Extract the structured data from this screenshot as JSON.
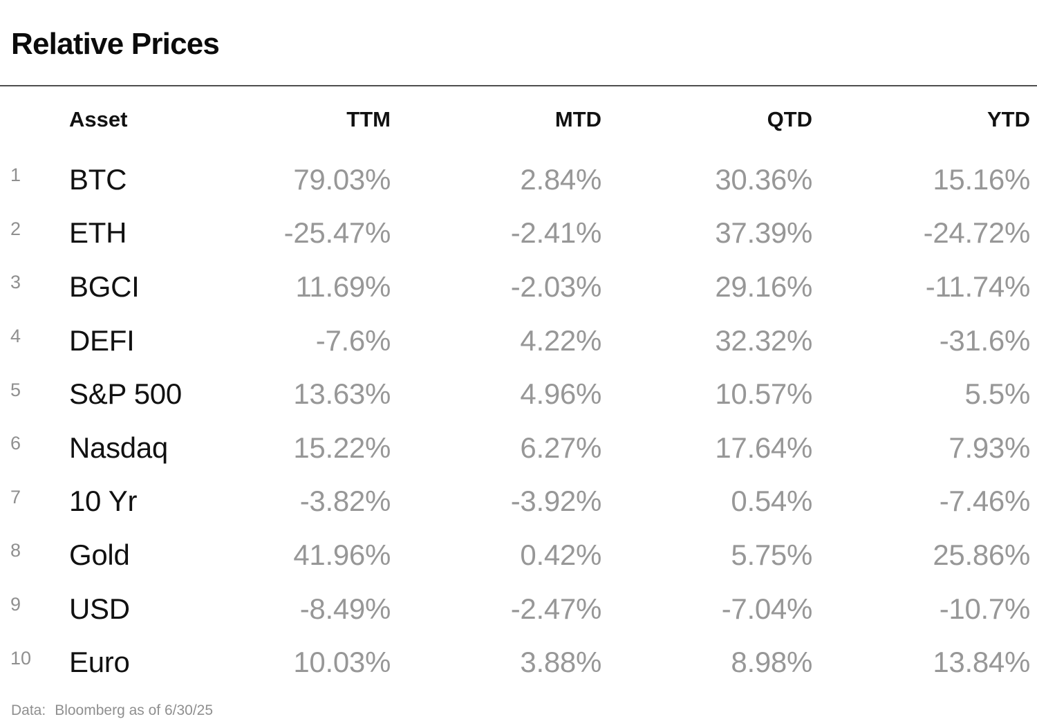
{
  "page": {
    "title": "Relative Prices",
    "footer": {
      "label": "Data:",
      "value": "Bloomberg as of 6/30/25"
    }
  },
  "colors": {
    "background": "#ffffff",
    "title_text": "#0b0b0b",
    "header_text": "#111111",
    "asset_text": "#111111",
    "value_text": "#979797",
    "row_number_text": "#8f8f8f",
    "rule": "#4d4d4d",
    "footer_text": "#8f8f8f"
  },
  "table": {
    "header": {
      "asset": "Asset",
      "ttm": "TTM",
      "mtd": "MTD",
      "qtd": "QTD",
      "ytd": "YTD"
    },
    "rows": [
      {
        "num": "1",
        "asset": "BTC",
        "ttm": "79.03%",
        "mtd": "2.84%",
        "qtd": "30.36%",
        "ytd": "15.16%"
      },
      {
        "num": "2",
        "asset": "ETH",
        "ttm": "-25.47%",
        "mtd": "-2.41%",
        "qtd": "37.39%",
        "ytd": "-24.72%"
      },
      {
        "num": "3",
        "asset": "BGCI",
        "ttm": "11.69%",
        "mtd": "-2.03%",
        "qtd": "29.16%",
        "ytd": "-11.74%"
      },
      {
        "num": "4",
        "asset": "DEFI",
        "ttm": "-7.6%",
        "mtd": "4.22%",
        "qtd": "32.32%",
        "ytd": "-31.6%"
      },
      {
        "num": "5",
        "asset": "S&P 500",
        "ttm": "13.63%",
        "mtd": "4.96%",
        "qtd": "10.57%",
        "ytd": "5.5%"
      },
      {
        "num": "6",
        "asset": "Nasdaq",
        "ttm": "15.22%",
        "mtd": "6.27%",
        "qtd": "17.64%",
        "ytd": "7.93%"
      },
      {
        "num": "7",
        "asset": "10 Yr",
        "ttm": "-3.82%",
        "mtd": "-3.92%",
        "qtd": "0.54%",
        "ytd": "-7.46%"
      },
      {
        "num": "8",
        "asset": "Gold",
        "ttm": "41.96%",
        "mtd": "0.42%",
        "qtd": "5.75%",
        "ytd": "25.86%"
      },
      {
        "num": "9",
        "asset": "USD",
        "ttm": "-8.49%",
        "mtd": "-2.47%",
        "qtd": "-7.04%",
        "ytd": "-10.7%"
      },
      {
        "num": "10",
        "asset": "Euro",
        "ttm": "10.03%",
        "mtd": "3.88%",
        "qtd": "8.98%",
        "ytd": "13.84%"
      }
    ]
  },
  "chart_data": {
    "type": "table",
    "title": "Relative Prices",
    "columns": [
      "Asset",
      "TTM",
      "MTD",
      "QTD",
      "YTD"
    ],
    "units": "%",
    "rows": [
      [
        "BTC",
        79.03,
        2.84,
        30.36,
        15.16
      ],
      [
        "ETH",
        -25.47,
        -2.41,
        37.39,
        -24.72
      ],
      [
        "BGCI",
        11.69,
        -2.03,
        29.16,
        -11.74
      ],
      [
        "DEFI",
        -7.6,
        4.22,
        32.32,
        -31.6
      ],
      [
        "S&P 500",
        13.63,
        4.96,
        10.57,
        5.5
      ],
      [
        "Nasdaq",
        15.22,
        6.27,
        17.64,
        7.93
      ],
      [
        "10 Yr",
        -3.82,
        -3.92,
        0.54,
        -7.46
      ],
      [
        "Gold",
        41.96,
        0.42,
        5.75,
        25.86
      ],
      [
        "USD",
        -8.49,
        -2.47,
        -7.04,
        -10.7
      ],
      [
        "Euro",
        10.03,
        3.88,
        8.98,
        13.84
      ]
    ],
    "source_note": "Data: Bloomberg as of 6/30/25"
  }
}
